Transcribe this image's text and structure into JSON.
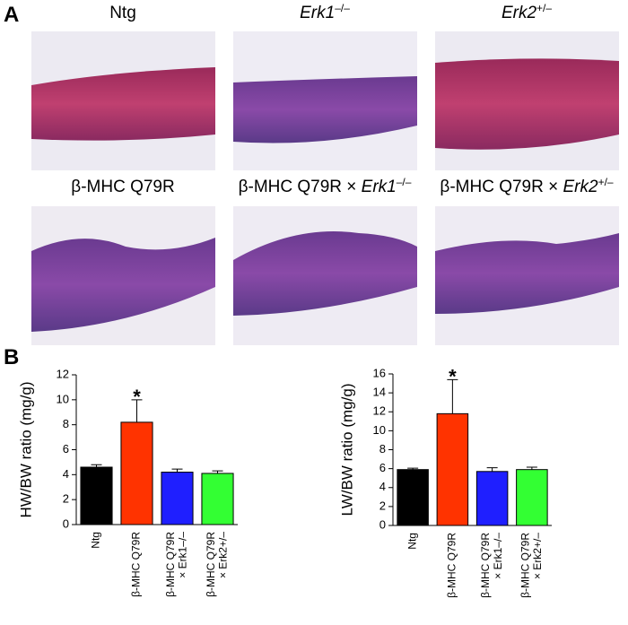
{
  "panel_a": {
    "label": "A",
    "captions": [
      {
        "text": "Ntg"
      },
      {
        "gene": "Erk1",
        "sup": "–/–"
      },
      {
        "gene": "Erk2",
        "sup": "+/–"
      },
      {
        "text": "β-MHC Q79R"
      },
      {
        "text": "β-MHC Q79R × ",
        "gene": "Erk1",
        "sup": "–/–"
      },
      {
        "text": "β-MHC Q79R × ",
        "gene": "Erk2",
        "sup": "+/–"
      }
    ]
  },
  "panel_b": {
    "label": "B"
  },
  "chart_data": [
    {
      "type": "bar",
      "ylabel": "HW/BW ratio (mg/g)",
      "categories": [
        "Ntg",
        "β-MHC Q79R",
        "β-MHC Q79R\n× Erk1–/–",
        "β-MHC Q79R\n× Erk2+/–"
      ],
      "values": [
        4.6,
        8.2,
        4.2,
        4.1
      ],
      "errors": [
        0.2,
        1.8,
        0.25,
        0.2
      ],
      "colors": [
        "#000000",
        "#ff3300",
        "#1f1fff",
        "#33ff33"
      ],
      "ylim": [
        0,
        12
      ],
      "yticks": [
        0,
        2,
        4,
        6,
        8,
        10,
        12
      ],
      "annotations": [
        {
          "x": "β-MHC Q79R",
          "text": "*"
        }
      ]
    },
    {
      "type": "bar",
      "ylabel": "LW/BW ratio (mg/g)",
      "categories": [
        "Ntg",
        "β-MHC Q79R",
        "β-MHC Q79R\n× Erk1–/–",
        "β-MHC Q79R\n× Erk2+/–"
      ],
      "values": [
        5.9,
        11.8,
        5.7,
        5.9
      ],
      "errors": [
        0.15,
        3.6,
        0.4,
        0.25
      ],
      "colors": [
        "#000000",
        "#ff3300",
        "#1f1fff",
        "#33ff33"
      ],
      "ylim": [
        0,
        16
      ],
      "yticks": [
        0,
        2,
        4,
        6,
        8,
        10,
        12,
        14,
        16
      ],
      "annotations": [
        {
          "x": "β-MHC Q79R",
          "text": "*"
        }
      ]
    }
  ]
}
